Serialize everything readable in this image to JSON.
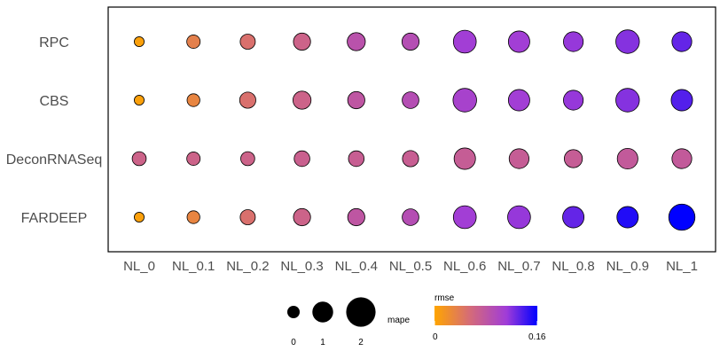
{
  "chart_data": {
    "type": "scatter",
    "x_categories": [
      "NL_0",
      "NL_0.1",
      "NL_0.2",
      "NL_0.3",
      "NL_0.4",
      "NL_0.5",
      "NL_0.6",
      "NL_0.7",
      "NL_0.8",
      "NL_0.9",
      "NL_1"
    ],
    "y_categories": [
      "RPC",
      "CBS",
      "DeconRNASeq",
      "FARDEEP"
    ],
    "series": [
      {
        "name": "RPC",
        "mape": [
          0.3,
          0.55,
          0.7,
          0.9,
          1.0,
          0.9,
          1.6,
          1.4,
          1.2,
          1.7,
          1.2
        ],
        "rmse": [
          0.005,
          0.035,
          0.05,
          0.065,
          0.085,
          0.09,
          0.11,
          0.11,
          0.115,
          0.12,
          0.13
        ]
      },
      {
        "name": "CBS",
        "mape": [
          0.3,
          0.5,
          0.8,
          1.0,
          0.9,
          0.85,
          1.7,
          1.4,
          1.2,
          1.7,
          1.4
        ],
        "rmse": [
          0.005,
          0.03,
          0.05,
          0.065,
          0.08,
          0.09,
          0.105,
          0.11,
          0.115,
          0.12,
          0.135
        ]
      },
      {
        "name": "DeconRNASeq",
        "mape": [
          0.6,
          0.55,
          0.6,
          0.75,
          0.75,
          0.8,
          1.4,
          1.2,
          1.0,
          1.3,
          1.2
        ],
        "rmse": [
          0.065,
          0.065,
          0.065,
          0.068,
          0.07,
          0.07,
          0.072,
          0.072,
          0.072,
          0.075,
          0.075
        ]
      },
      {
        "name": "FARDEEP",
        "mape": [
          0.3,
          0.5,
          0.7,
          0.9,
          0.9,
          0.85,
          1.6,
          1.6,
          1.4,
          1.4,
          2.1
        ],
        "rmse": [
          0.005,
          0.03,
          0.05,
          0.065,
          0.08,
          0.09,
          0.11,
          0.115,
          0.13,
          0.15,
          0.16
        ]
      }
    ],
    "legend": {
      "size_title": "mape",
      "size_breaks": [
        0,
        1,
        2
      ],
      "size_labels": [
        "0",
        "1",
        "2"
      ],
      "color_title": "rmse",
      "color_range": [
        0,
        0.16
      ],
      "color_labels": [
        "0",
        "0.16"
      ],
      "color_scale": [
        "#ffa500",
        "#d46a7a",
        "#a03cd8",
        "#0000ff"
      ],
      "placement": "bottom"
    },
    "grid": false
  }
}
